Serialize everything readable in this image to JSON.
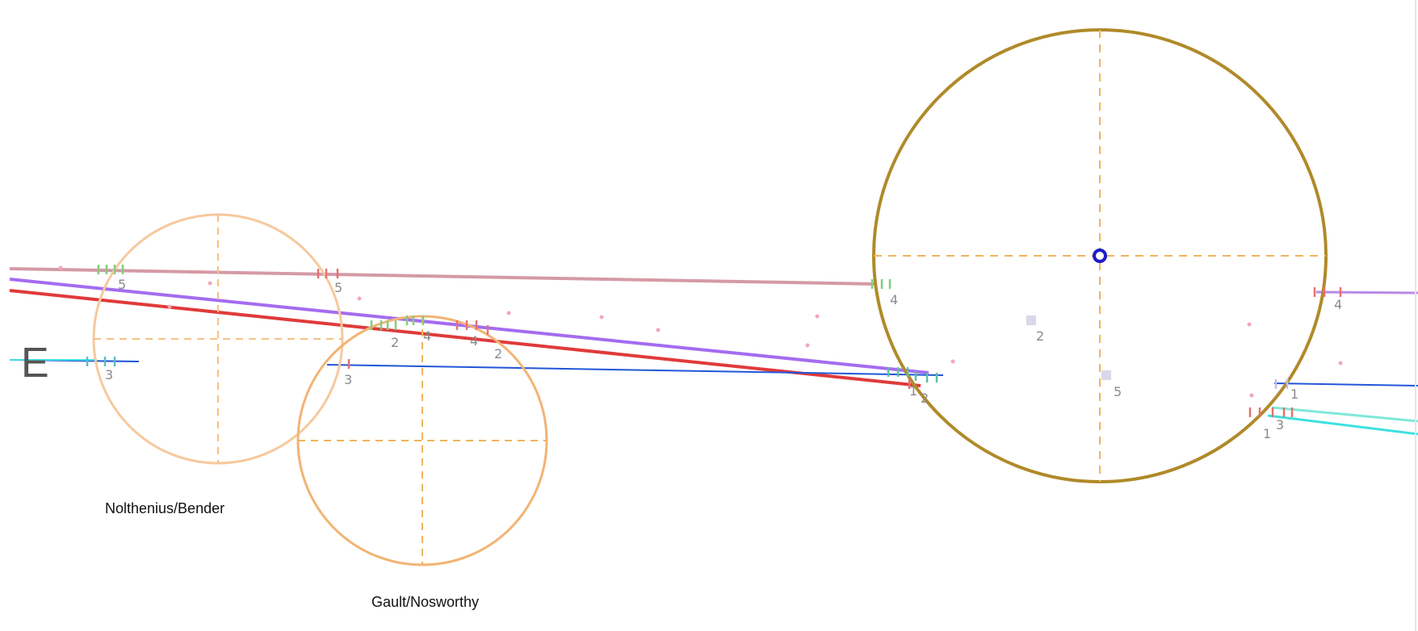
{
  "compass": {
    "letter": "E"
  },
  "circles": {
    "nolthenius_bender": {
      "label": "Nolthenius/Bender",
      "color": "#f6c99e"
    },
    "gault_nosworthy": {
      "label": "Gault/Nosworthy",
      "color": "#f2b474"
    },
    "main": {
      "label": "",
      "color": "#b08a2a"
    }
  },
  "center_marker": {
    "color": "#1c1ccc"
  },
  "crosshair_color": "#f0b45a",
  "track_colors": {
    "pink_top": "#d49aa5",
    "purple": "#a46cf0",
    "red": "#e03a3a",
    "blue": "#2255d8",
    "cyan": "#3ee0e0",
    "violet_right": "#b98ae6"
  },
  "markers": [
    {
      "id": "m1",
      "text": "5"
    },
    {
      "id": "m2",
      "text": "5"
    },
    {
      "id": "m3",
      "text": "3"
    },
    {
      "id": "m4",
      "text": "3"
    },
    {
      "id": "m5",
      "text": "2"
    },
    {
      "id": "m6",
      "text": "4"
    },
    {
      "id": "m7",
      "text": "4"
    },
    {
      "id": "m8",
      "text": "2"
    },
    {
      "id": "m9",
      "text": "4"
    },
    {
      "id": "m10",
      "text": "2"
    },
    {
      "id": "m11",
      "text": "5"
    },
    {
      "id": "m12",
      "text": "1"
    },
    {
      "id": "m13",
      "text": "2"
    },
    {
      "id": "m14",
      "text": "4"
    },
    {
      "id": "m15",
      "text": "1"
    },
    {
      "id": "m16",
      "text": "1"
    },
    {
      "id": "m17",
      "text": "3"
    }
  ]
}
